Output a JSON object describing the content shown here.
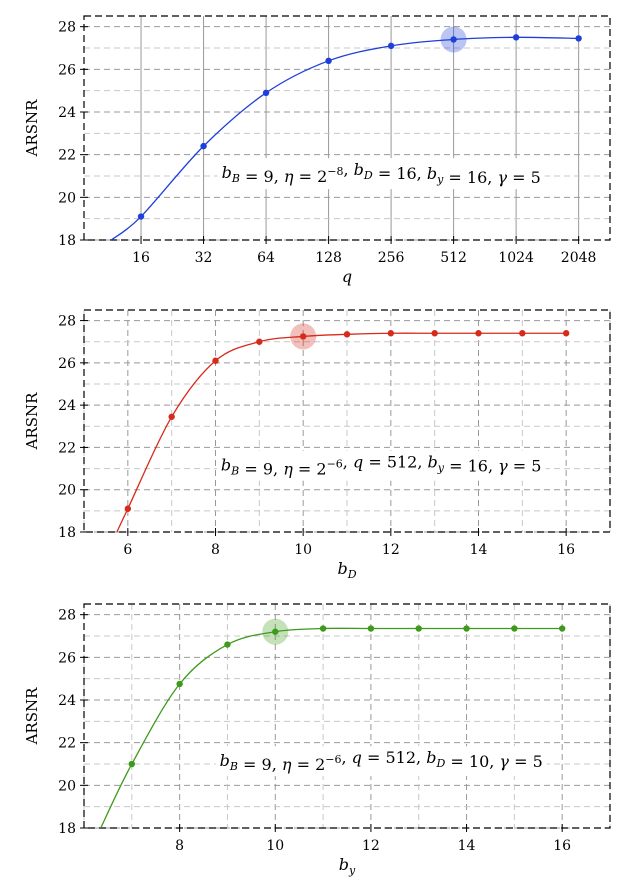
{
  "chart_data": [
    {
      "type": "line",
      "color": "#1f3fdb",
      "xlabel": "q",
      "xscale": "log2",
      "ylabel": "ARSNR",
      "ylim": [
        18,
        28.5
      ],
      "yticks": [
        18,
        20,
        22,
        24,
        26,
        28
      ],
      "xticks": [
        16,
        32,
        64,
        128,
        256,
        512,
        1024,
        2048
      ],
      "xlim": [
        8.5,
        2900
      ],
      "grid": "both",
      "annotation": "b_B = 9, η = 2^−8, b_D = 16, b_y = 16, γ = 5",
      "highlight": {
        "x": 512,
        "y": 27.4
      },
      "x": [
        16,
        32,
        64,
        128,
        256,
        512,
        1024,
        2048
      ],
      "y": [
        19.1,
        22.4,
        24.9,
        26.4,
        27.1,
        27.4,
        27.5,
        27.45
      ],
      "curve_start": {
        "x": 11.5,
        "y": 18.0
      }
    },
    {
      "type": "line",
      "color": "#d62a1a",
      "xlabel": "b_D",
      "ylabel": "ARSNR",
      "ylim": [
        18,
        28.5
      ],
      "yticks": [
        18,
        20,
        22,
        24,
        26,
        28
      ],
      "xticks": [
        6,
        8,
        10,
        12,
        14,
        16
      ],
      "xlim": [
        5,
        17
      ],
      "grid": "both",
      "annotation": "b_B = 9, η = 2^−6, q = 512, b_y = 16, γ = 5",
      "highlight": {
        "x": 10,
        "y": 27.25
      },
      "x": [
        6,
        7,
        8,
        9,
        10,
        11,
        12,
        13,
        14,
        15,
        16
      ],
      "y": [
        19.1,
        23.45,
        26.1,
        27.0,
        27.25,
        27.35,
        27.4,
        27.4,
        27.4,
        27.4,
        27.4
      ],
      "curve_start": {
        "x": 5.75,
        "y": 18.0
      }
    },
    {
      "type": "line",
      "color": "#3d9a1a",
      "xlabel": "b_y",
      "ylabel": "ARSNR",
      "ylim": [
        18,
        28.5
      ],
      "yticks": [
        18,
        20,
        22,
        24,
        26,
        28
      ],
      "xticks": [
        8,
        10,
        12,
        14,
        16
      ],
      "xlim": [
        6,
        17
      ],
      "grid": "both",
      "annotation": "b_B = 9, η = 2^−6, q = 512, b_D = 10, γ = 5",
      "highlight": {
        "x": 10,
        "y": 27.2
      },
      "x": [
        7,
        8,
        9,
        10,
        11,
        12,
        13,
        14,
        15,
        16
      ],
      "y": [
        21.0,
        24.75,
        26.6,
        27.2,
        27.35,
        27.35,
        27.35,
        27.35,
        27.35,
        27.35
      ],
      "curve_start": {
        "x": 6.35,
        "y": 18.0
      }
    }
  ]
}
